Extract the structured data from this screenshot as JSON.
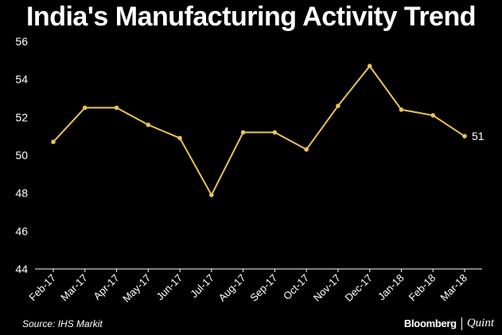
{
  "chart_data": {
    "type": "line",
    "title": "India's Manufacturing Activity Trend",
    "categories": [
      "Feb-17",
      "Mar-17",
      "Apr-17",
      "May-17",
      "Jun-17",
      "Jul-17",
      "Aug-17",
      "Sep-17",
      "Oct-17",
      "Nov-17",
      "Dec-17",
      "Jan-18",
      "Feb-18",
      "Mar-18"
    ],
    "values": [
      50.7,
      52.5,
      52.5,
      51.6,
      50.9,
      47.9,
      51.2,
      51.2,
      50.3,
      52.6,
      54.7,
      52.4,
      52.1,
      51.0
    ],
    "yticks": [
      "44",
      "46",
      "48",
      "50",
      "52",
      "54",
      "56"
    ],
    "ylim": [
      44,
      56
    ],
    "end_label": "51",
    "grid": false,
    "line_color": "#e8c35a"
  },
  "footer": {
    "source": "Source: IHS Markit",
    "brand_left": "Bloomberg",
    "brand_right": "Quint"
  }
}
